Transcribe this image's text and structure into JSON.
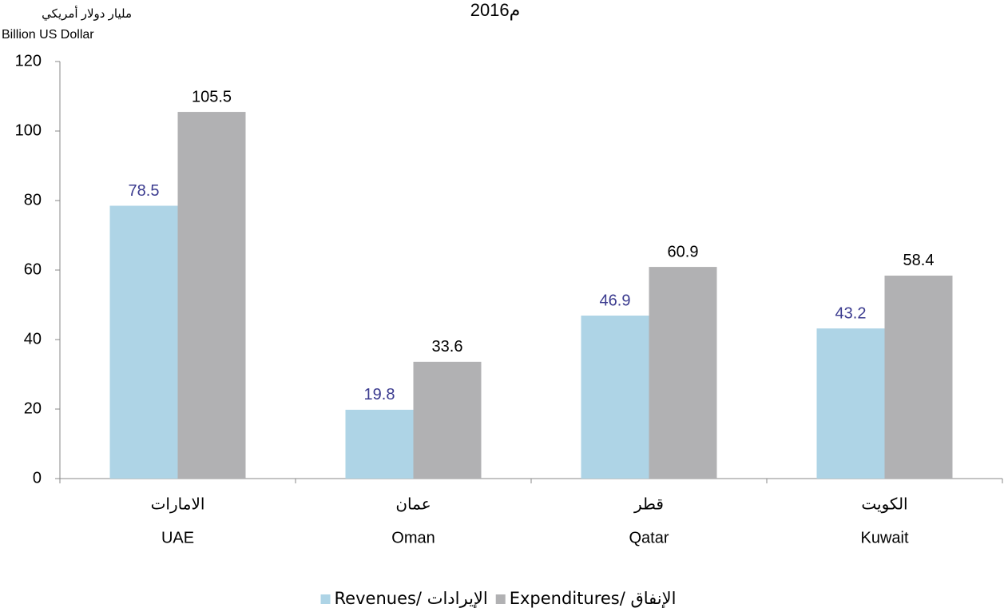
{
  "chart_data": {
    "type": "bar",
    "title": "2016م",
    "y_label_ar": "مليار دولار أمريكي",
    "y_label": "Billion  US Dollar",
    "categories": [
      "UAE",
      "Oman",
      "Qatar",
      "Kuwait"
    ],
    "categories_ar": [
      "الامارات",
      "عمان",
      "قطر",
      "الكويت"
    ],
    "series": [
      {
        "name": "Revenues/ الإيرادات",
        "color": "#aed4e6",
        "label_color": "#3b3b8f",
        "values": [
          78.5,
          19.8,
          46.9,
          43.2
        ]
      },
      {
        "name": "Expenditures/ الإنفاق",
        "color": "#b1b1b3",
        "label_color": "#000000",
        "values": [
          105.5,
          33.6,
          60.9,
          58.4
        ]
      }
    ],
    "ylim": [
      0,
      120
    ],
    "yticks": [
      0,
      20,
      40,
      60,
      80,
      100,
      120
    ],
    "grid": false,
    "legend": "bottom"
  }
}
